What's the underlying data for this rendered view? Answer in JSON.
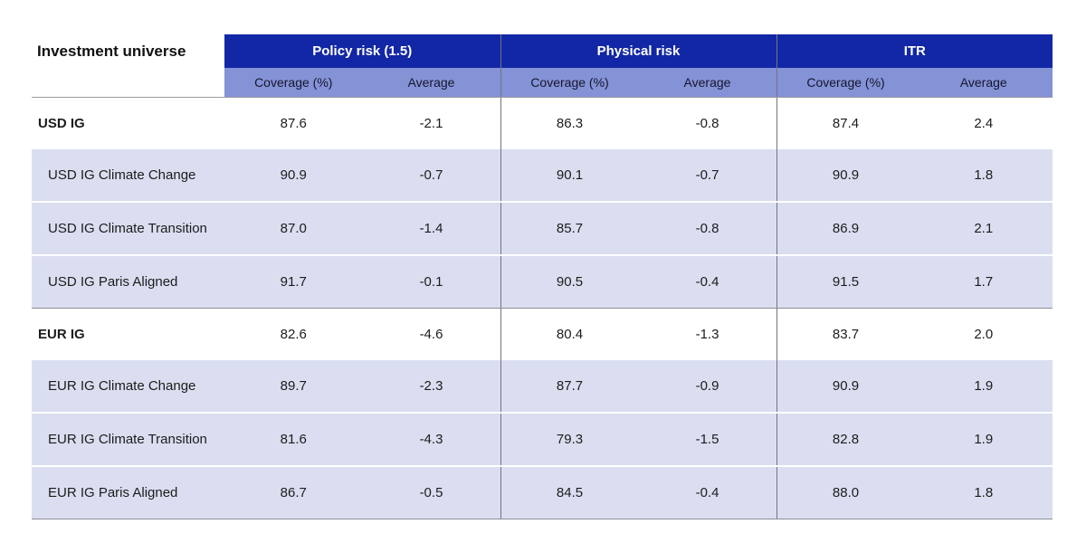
{
  "page": {
    "background": "#ffffff"
  },
  "chart_data": {
    "type": "table",
    "row_header": "Investment universe",
    "column_groups": [
      {
        "label": "Policy risk (1.5)",
        "subcolumns": [
          "Coverage (%)",
          "Average"
        ]
      },
      {
        "label": "Physical risk",
        "subcolumns": [
          "Coverage (%)",
          "Average"
        ]
      },
      {
        "label": "ITR",
        "subcolumns": [
          "Coverage (%)",
          "Average"
        ]
      }
    ],
    "rows": [
      {
        "label": "USD IG",
        "is_section_header": true,
        "values": [
          "87.6",
          "-2.1",
          "86.3",
          "-0.8",
          "87.4",
          "2.4"
        ]
      },
      {
        "label": "USD IG Climate Change",
        "is_section_header": false,
        "values": [
          "90.9",
          "-0.7",
          "90.1",
          "-0.7",
          "90.9",
          "1.8"
        ]
      },
      {
        "label": "USD IG Climate Transition",
        "is_section_header": false,
        "values": [
          "87.0",
          "-1.4",
          "85.7",
          "-0.8",
          "86.9",
          "2.1"
        ]
      },
      {
        "label": "USD IG Paris Aligned",
        "is_section_header": false,
        "values": [
          "91.7",
          "-0.1",
          "90.5",
          "-0.4",
          "91.5",
          "1.7"
        ]
      },
      {
        "label": "EUR IG",
        "is_section_header": true,
        "values": [
          "82.6",
          "-4.6",
          "80.4",
          "-1.3",
          "83.7",
          "2.0"
        ]
      },
      {
        "label": "EUR IG Climate Change",
        "is_section_header": false,
        "values": [
          "89.7",
          "-2.3",
          "87.7",
          "-0.9",
          "90.9",
          "1.9"
        ]
      },
      {
        "label": "EUR IG Climate Transition",
        "is_section_header": false,
        "values": [
          "81.6",
          "-4.3",
          "79.3",
          "-1.5",
          "82.8",
          "1.9"
        ]
      },
      {
        "label": "EUR IG Paris Aligned",
        "is_section_header": false,
        "values": [
          "86.7",
          "-0.5",
          "84.5",
          "-0.4",
          "88.0",
          "1.8"
        ]
      }
    ]
  },
  "colors": {
    "group_header_bg": "#1227A5",
    "group_header_text": "#ffffff",
    "subheader_bg": "#8492D6",
    "subheader_text": "#16162e",
    "striped_row_bg": "#DADEF0",
    "section_row_bg": "#ffffff",
    "vertical_divider": "#74747e",
    "horizontal_rule": "#8f8f97",
    "body_text": "#1c1c1c"
  }
}
